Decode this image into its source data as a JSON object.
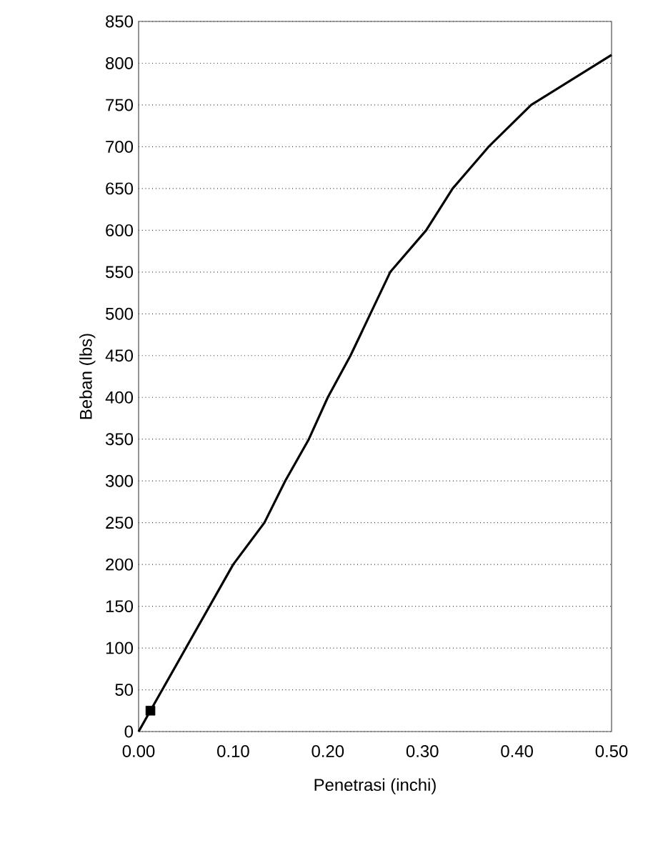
{
  "chart_data": {
    "type": "line",
    "xlabel": "Penetrasi (inchi)",
    "ylabel": "Beban (lbs)",
    "x": [
      0,
      0.0125,
      0.05,
      0.1,
      0.133,
      0.155,
      0.18,
      0.2,
      0.224,
      0.266,
      0.304,
      0.332,
      0.37,
      0.415,
      0.5
    ],
    "series": [
      {
        "color": "#000000",
        "values": [
          0,
          25,
          100,
          200,
          250,
          300,
          350,
          400,
          450,
          550,
          600,
          650,
          700,
          750,
          810
        ]
      },
      {
        "type": "scatter",
        "marker": "square",
        "color": "#000000",
        "x": [
          0.0125
        ],
        "values": [
          25
        ]
      }
    ],
    "xlim": [
      0,
      0.5
    ],
    "ylim": [
      0,
      850
    ],
    "xticks": [
      {
        "value": 0,
        "label": "0.00"
      },
      {
        "value": 0.1,
        "label": "0.10"
      },
      {
        "value": 0.2,
        "label": "0.20"
      },
      {
        "value": 0.3,
        "label": "0.30"
      },
      {
        "value": 0.4,
        "label": "0.40"
      },
      {
        "value": 0.5,
        "label": "0.50"
      }
    ],
    "yticks": [
      0,
      50,
      100,
      150,
      200,
      250,
      300,
      350,
      400,
      450,
      500,
      550,
      600,
      650,
      700,
      750,
      800,
      850
    ],
    "grid": "y",
    "line_style": "solid"
  }
}
